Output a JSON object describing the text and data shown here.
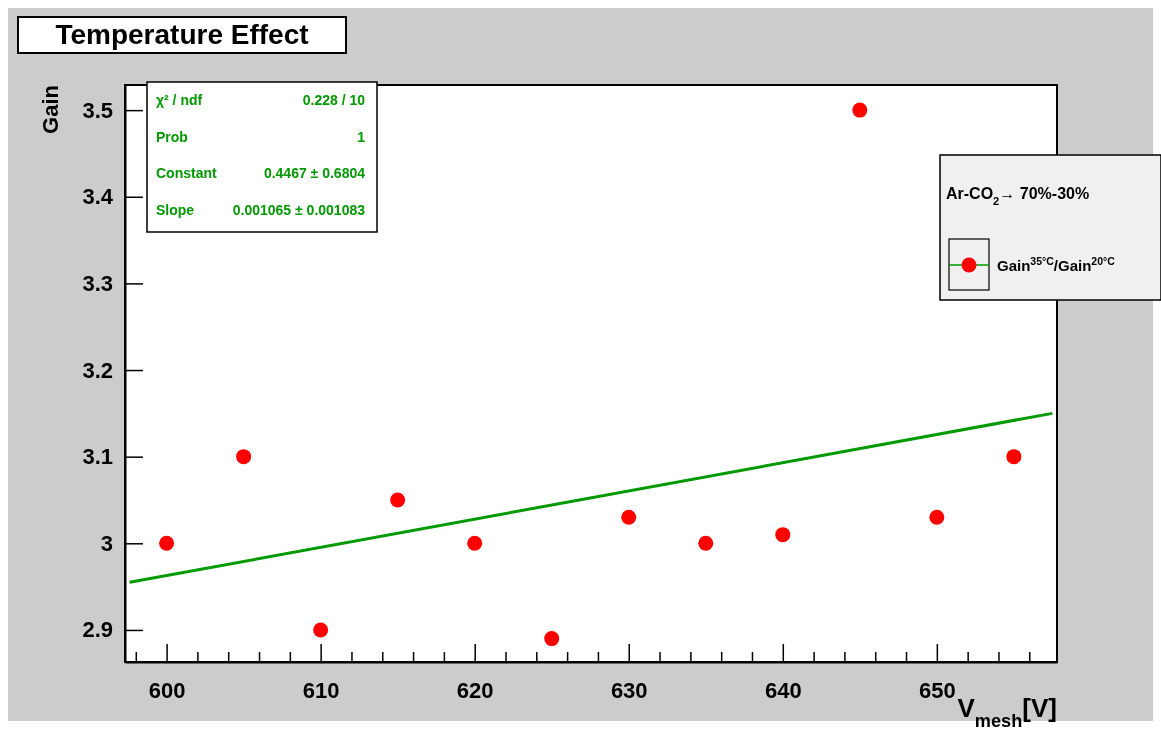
{
  "chart_data": {
    "type": "scatter",
    "title": "Temperature Effect",
    "xlabel": "V$_{mesh}$[V]",
    "ylabel": "Gain",
    "legend_title": "Ar-CO$_{2}$→ 70%-30%",
    "legend": "right",
    "marker": "circle",
    "x": [
      600,
      605,
      610,
      615,
      620,
      625,
      630,
      635,
      640,
      645,
      650,
      655
    ],
    "series": [
      {
        "name": "Gain$^{35°C}$/Gain$^{20°C}$",
        "color": "#ff0000",
        "values": [
          3.0,
          3.1,
          2.9,
          3.05,
          3.0,
          2.89,
          3.03,
          3.0,
          3.01,
          3.5,
          3.03,
          3.1
        ]
      },
      {
        "type": "line",
        "marker": "none",
        "color": "#009900",
        "x": [
          597.6,
          657.5
        ],
        "values": [
          2.955,
          3.15
        ]
      }
    ],
    "xlim": [
      597.3,
      657.8
    ],
    "ylim": [
      2.863,
      3.529
    ],
    "xticks": [
      {
        "value": 598,
        "label": null
      },
      600,
      {
        "value": 602,
        "label": null
      },
      {
        "value": 604,
        "label": null
      },
      {
        "value": 606,
        "label": null
      },
      {
        "value": 608,
        "label": null
      },
      610,
      {
        "value": 612,
        "label": null
      },
      {
        "value": 614,
        "label": null
      },
      {
        "value": 616,
        "label": null
      },
      {
        "value": 618,
        "label": null
      },
      620,
      {
        "value": 622,
        "label": null
      },
      {
        "value": 624,
        "label": null
      },
      {
        "value": 626,
        "label": null
      },
      {
        "value": 628,
        "label": null
      },
      630,
      {
        "value": 632,
        "label": null
      },
      {
        "value": 634,
        "label": null
      },
      {
        "value": 636,
        "label": null
      },
      {
        "value": 638,
        "label": null
      },
      640,
      {
        "value": 642,
        "label": null
      },
      {
        "value": 644,
        "label": null
      },
      {
        "value": 646,
        "label": null
      },
      {
        "value": 648,
        "label": null
      },
      650,
      {
        "value": 652,
        "label": null
      },
      {
        "value": 654,
        "label": null
      },
      {
        "value": 656,
        "label": null
      }
    ],
    "yticks": [
      2.9,
      3,
      3.1,
      3.2,
      3.3,
      3.4,
      3.5
    ],
    "annotations": [
      "χ² / ndf",
      "0.228 / 10",
      "Prob",
      "1",
      "Constant",
      "0.4467 ± 0.6804",
      "Slope",
      "0.001065 ± 0.001083"
    ]
  }
}
